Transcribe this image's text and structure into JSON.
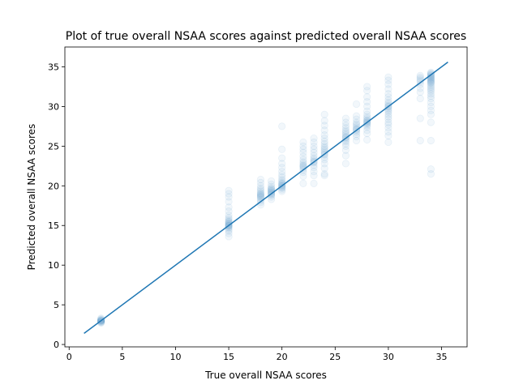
{
  "chart_data": {
    "type": "scatter",
    "title": "Plot of true overall NSAA scores against predicted overall NSAA scores",
    "xlabel": "True overall NSAA scores",
    "ylabel": "Predicted overall NSAA scores",
    "xlim": [
      -0.4,
      37.4
    ],
    "ylim": [
      -0.3,
      37.5
    ],
    "xticks": [
      0,
      5,
      10,
      15,
      20,
      25,
      30,
      35
    ],
    "yticks": [
      0,
      5,
      10,
      15,
      20,
      25,
      30,
      35
    ],
    "grid": false,
    "colors": {
      "series": "#1f77b4",
      "axis": "#000000",
      "background": "#ffffff"
    },
    "point_alpha": 0.06,
    "identity_line": {
      "x": [
        1.4,
        35.6
      ],
      "y": [
        1.4,
        35.6
      ]
    },
    "groups": [
      {
        "x": 3,
        "y": [
          2.7,
          2.8,
          2.8,
          2.9,
          2.9,
          3.0,
          3.0,
          3.0,
          3.1,
          3.1,
          3.2,
          3.3
        ]
      },
      {
        "x": 15,
        "y": [
          13.6,
          14.0,
          14.3,
          14.5,
          14.7,
          14.8,
          14.9,
          15.0,
          15.0,
          15.1,
          15.2,
          15.3,
          15.4,
          15.5,
          15.6,
          15.8,
          16.0,
          16.3,
          16.8,
          17.3,
          18.0,
          18.6,
          19.0,
          19.4
        ]
      },
      {
        "x": 18,
        "y": [
          17.6,
          17.9,
          18.1,
          18.3,
          18.5,
          18.6,
          18.7,
          18.8,
          18.9,
          19.0,
          19.1,
          19.3,
          19.5,
          19.7,
          20.0,
          20.4,
          20.8
        ]
      },
      {
        "x": 19,
        "y": [
          18.3,
          18.6,
          18.8,
          18.9,
          19.0,
          19.1,
          19.2,
          19.3,
          19.4,
          19.5,
          19.6,
          19.7,
          19.9,
          20.2,
          20.6
        ]
      },
      {
        "x": 20,
        "y": [
          19.3,
          19.5,
          19.7,
          19.8,
          19.9,
          20.0,
          20.1,
          20.2,
          20.3,
          20.4,
          20.6,
          20.8,
          21.1,
          21.4,
          21.8,
          22.3,
          22.8,
          23.5,
          24.6,
          27.5
        ]
      },
      {
        "x": 22,
        "y": [
          20.3,
          21.2,
          21.7,
          22.0,
          22.2,
          22.4,
          22.5,
          22.6,
          22.8,
          23.0,
          23.3,
          23.7,
          24.2,
          24.6,
          25.0,
          25.5
        ]
      },
      {
        "x": 23,
        "y": [
          20.3,
          21.3,
          21.8,
          22.3,
          22.6,
          22.9,
          23.0,
          23.1,
          23.3,
          23.5,
          23.8,
          24.2,
          24.6,
          25.0,
          25.5,
          26.0
        ]
      },
      {
        "x": 24,
        "y": [
          21.3,
          21.5,
          22.2,
          22.8,
          23.3,
          23.6,
          23.9,
          24.0,
          24.2,
          24.4,
          24.6,
          24.8,
          25.0,
          25.3,
          25.6,
          26.0,
          26.4,
          27.0,
          27.6,
          28.2,
          29.0
        ]
      },
      {
        "x": 26,
        "y": [
          22.8,
          23.8,
          24.5,
          25.0,
          25.3,
          25.6,
          25.8,
          26.0,
          26.1,
          26.2,
          26.4,
          26.6,
          26.8,
          27.0,
          27.3,
          27.6,
          28.0,
          28.5
        ]
      },
      {
        "x": 27,
        "y": [
          25.7,
          26.2,
          26.5,
          26.8,
          27.0,
          27.1,
          27.2,
          27.4,
          27.6,
          27.8,
          28.0,
          28.4,
          28.8,
          30.3
        ]
      },
      {
        "x": 28,
        "y": [
          25.8,
          26.6,
          27.0,
          27.4,
          27.6,
          27.8,
          27.9,
          28.0,
          28.1,
          28.2,
          28.3,
          28.5,
          28.7,
          29.0,
          29.4,
          30.0,
          30.6,
          31.2,
          32.0,
          32.5
        ]
      },
      {
        "x": 30,
        "y": [
          25.5,
          26.3,
          26.8,
          27.3,
          27.7,
          28.0,
          28.4,
          28.7,
          29.0,
          29.3,
          29.5,
          29.7,
          29.9,
          30.0,
          30.1,
          30.3,
          30.5,
          30.8,
          31.2,
          31.6,
          32.2,
          32.8,
          33.3,
          33.7
        ]
      },
      {
        "x": 33,
        "y": [
          25.7,
          28.5,
          31.0,
          31.8,
          32.3,
          32.8,
          33.1,
          33.3,
          33.5,
          33.7,
          33.9
        ]
      },
      {
        "x": 34,
        "y": [
          21.5,
          22.1,
          25.7,
          28.0,
          29.0,
          29.5,
          30.0,
          30.5,
          31.0,
          31.3,
          31.6,
          31.9,
          32.1,
          32.3,
          32.5,
          32.7,
          32.9,
          33.0,
          33.1,
          33.2,
          33.3,
          33.4,
          33.5,
          33.6,
          33.7,
          33.8,
          33.9,
          34.0,
          34.1,
          34.2,
          34.3
        ]
      }
    ]
  }
}
